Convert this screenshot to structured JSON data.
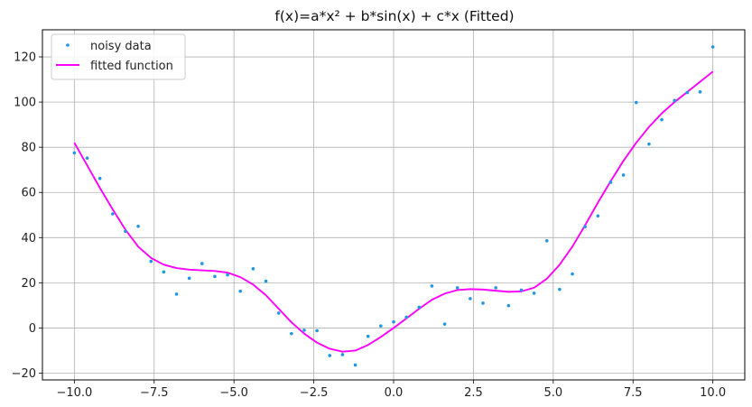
{
  "chart_data": {
    "type": "line",
    "title": "f(x)=a*x² + b*sin(x) + c*x (Fitted)",
    "xlabel": "",
    "ylabel": "",
    "xlim": [
      -11.0,
      11.0
    ],
    "ylim": [
      -23,
      132
    ],
    "x_ticks": [
      -10.0,
      -7.5,
      -5.0,
      -2.5,
      0.0,
      2.5,
      5.0,
      7.5,
      10.0
    ],
    "x_tick_labels": [
      "−10.0",
      "−7.5",
      "−5.0",
      "−2.5",
      "0.0",
      "2.5",
      "5.0",
      "7.5",
      "10.0"
    ],
    "y_ticks": [
      -20,
      0,
      20,
      40,
      60,
      80,
      100,
      120
    ],
    "y_tick_labels": [
      "−20",
      "0",
      "20",
      "40",
      "60",
      "80",
      "100",
      "120"
    ],
    "grid": true,
    "legend_position": "upper-left",
    "colors": {
      "scatter": "#1f97e6",
      "line": "#ff00ff",
      "grid": "#b0b0b0"
    },
    "series": [
      {
        "name": "noisy data",
        "kind": "scatter",
        "x": [
          -10.0,
          -9.6,
          -9.2,
          -8.8,
          -8.4,
          -8.0,
          -7.6,
          -7.2,
          -6.8,
          -6.4,
          -6.0,
          -5.6,
          -5.2,
          -4.8,
          -4.4,
          -4.0,
          -3.6,
          -3.2,
          -2.8,
          -2.4,
          -2.0,
          -1.6,
          -1.2,
          -0.8,
          -0.4,
          0.0,
          0.4,
          0.8,
          1.2,
          1.6,
          2.0,
          2.4,
          2.8,
          3.2,
          3.6,
          4.0,
          4.4,
          4.8,
          5.2,
          5.6,
          6.0,
          6.4,
          6.8,
          7.2,
          7.6,
          8.0,
          8.4,
          8.8,
          9.2,
          9.6,
          10.0
        ],
        "y": [
          77.5,
          75.2,
          66.2,
          50.5,
          42.8,
          45.0,
          29.5,
          24.8,
          15.0,
          22.0,
          28.5,
          22.8,
          23.5,
          16.3,
          26.2,
          20.7,
          6.6,
          -2.5,
          -1.0,
          -1.2,
          -12.2,
          -11.8,
          -16.4,
          -3.7,
          0.9,
          2.7,
          4.8,
          9.2,
          18.6,
          1.7,
          17.8,
          13.0,
          11.0,
          17.8,
          9.9,
          16.8,
          15.4,
          38.6,
          17.1,
          23.9,
          44.8,
          49.6,
          64.5,
          67.7,
          99.8,
          81.4,
          92.2,
          100.7,
          104.2,
          104.5,
          124.4
        ]
      },
      {
        "name": "fitted function",
        "kind": "line",
        "x": [
          -10.0,
          -9.6,
          -9.2,
          -8.8,
          -8.4,
          -8.0,
          -7.6,
          -7.2,
          -6.8,
          -6.4,
          -6.0,
          -5.6,
          -5.2,
          -4.8,
          -4.4,
          -4.0,
          -3.6,
          -3.2,
          -2.8,
          -2.4,
          -2.0,
          -1.6,
          -1.2,
          -0.8,
          -0.4,
          0.0,
          0.4,
          0.8,
          1.2,
          1.6,
          2.0,
          2.4,
          2.8,
          3.2,
          3.6,
          4.0,
          4.4,
          4.8,
          5.2,
          5.6,
          6.0,
          6.4,
          6.8,
          7.2,
          7.6,
          8.0,
          8.4,
          8.8,
          9.2,
          9.6,
          10.0
        ],
        "y": [
          82.0,
          72.0,
          62.0,
          52.5,
          43.5,
          36.0,
          31.0,
          28.0,
          26.5,
          25.8,
          25.5,
          25.2,
          24.5,
          22.5,
          19.2,
          14.5,
          8.5,
          2.5,
          -2.5,
          -6.5,
          -9.2,
          -10.5,
          -10.0,
          -7.5,
          -4.0,
          0.0,
          4.2,
          8.5,
          12.5,
          15.2,
          16.8,
          17.2,
          17.0,
          16.5,
          16.0,
          16.2,
          17.8,
          21.8,
          28.0,
          36.0,
          45.5,
          55.5,
          65.0,
          74.0,
          82.0,
          89.0,
          95.0,
          100.0,
          104.5,
          109.0,
          113.5
        ]
      }
    ]
  }
}
